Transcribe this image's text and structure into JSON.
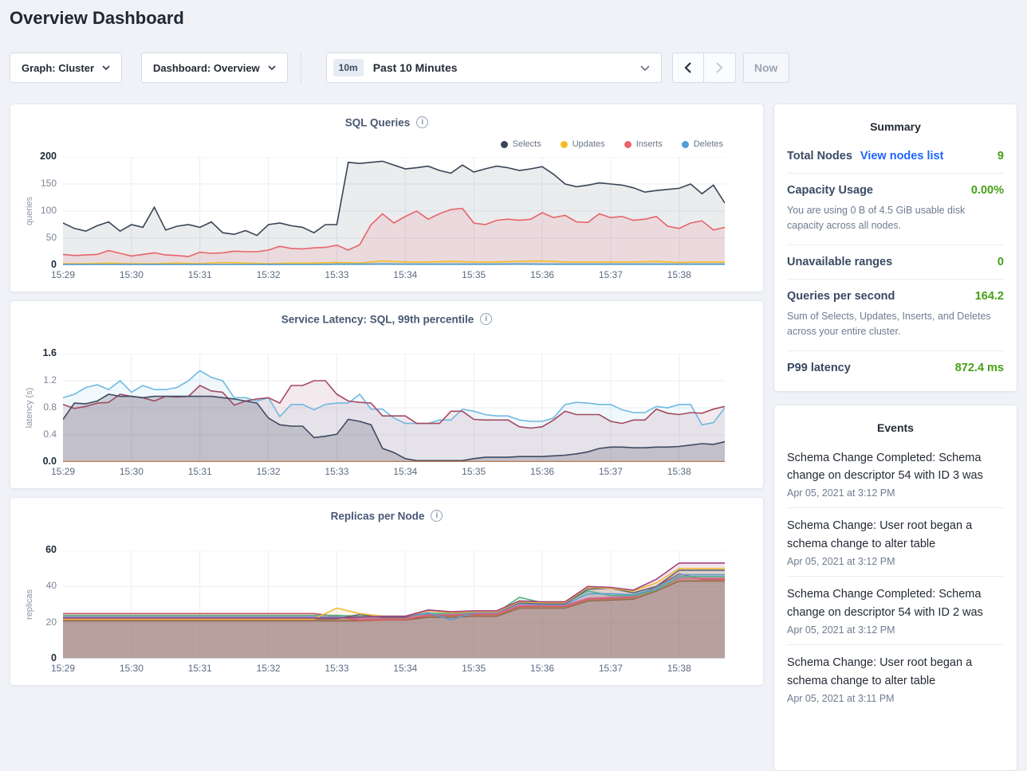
{
  "page": {
    "title": "Overview Dashboard"
  },
  "controls": {
    "graph_dropdown": "Graph: Cluster",
    "dashboard_dropdown": "Dashboard: Overview",
    "time_badge": "10m",
    "time_label": "Past 10 Minutes",
    "now_button": "Now"
  },
  "summary": {
    "title": "Summary",
    "rows": [
      {
        "label": "Total Nodes",
        "link": "View nodes list",
        "value": "9"
      },
      {
        "label": "Capacity Usage",
        "value": "0.00%",
        "desc": "You are using 0 B of 4.5 GiB usable disk capacity across all nodes."
      },
      {
        "label": "Unavailable ranges",
        "value": "0"
      },
      {
        "label": "Queries per second",
        "value": "164.2",
        "desc": "Sum of Selects, Updates, Inserts, and Deletes across your entire cluster."
      },
      {
        "label": "P99 latency",
        "value": "872.4 ms"
      }
    ]
  },
  "events": {
    "title": "Events",
    "items": [
      {
        "message": "Schema Change Completed: Schema change on descriptor 54 with ID 3 was",
        "timestamp": "Apr 05, 2021 at 3:12 PM"
      },
      {
        "message": "Schema Change: User root began a schema change to alter table",
        "timestamp": "Apr 05, 2021 at 3:12 PM"
      },
      {
        "message": "Schema Change Completed: Schema change on descriptor 54 with ID 2 was",
        "timestamp": "Apr 05, 2021 at 3:12 PM"
      },
      {
        "message": "Schema Change: User root began a schema change to alter table",
        "timestamp": "Apr 05, 2021 at 3:11 PM"
      }
    ]
  },
  "colors": {
    "accent_link": "#1f65ff",
    "metric_green": "#45a115",
    "panel_border": "#e3e7ef",
    "page_background": "#f0f2f7"
  },
  "chart_data": [
    {
      "id": "sql",
      "type": "line",
      "title": "SQL Queries",
      "ylabel": "queries",
      "ymax": 200,
      "yticks": [
        {
          "label": "0",
          "value": 0,
          "bold": true
        },
        {
          "label": "50",
          "value": 50
        },
        {
          "label": "100",
          "value": 100
        },
        {
          "label": "150",
          "value": 150
        },
        {
          "label": "200",
          "value": 200,
          "bold": true
        }
      ],
      "xticks": [
        "15:29",
        "15:30",
        "15:31",
        "15:32",
        "15:33",
        "15:34",
        "15:35",
        "15:36",
        "15:37",
        "15:38"
      ],
      "legend": [
        {
          "label": "Selects",
          "color": "#394455"
        },
        {
          "label": "Updates",
          "color": "#f4bd27"
        },
        {
          "label": "Inserts",
          "color": "#e8646a"
        },
        {
          "label": "Deletes",
          "color": "#4da0d8"
        }
      ],
      "series": [
        {
          "name": "selects",
          "color": "#394455",
          "fill_opacity": 0.1,
          "values": [
            78,
            68,
            63,
            73,
            80,
            63,
            75,
            70,
            107,
            65,
            72,
            75,
            70,
            80,
            60,
            57,
            64,
            55,
            75,
            78,
            73,
            70,
            60,
            75,
            75,
            190,
            188,
            190,
            192,
            185,
            178,
            180,
            183,
            175,
            170,
            185,
            172,
            178,
            183,
            180,
            175,
            178,
            182,
            168,
            150,
            145,
            148,
            152,
            150,
            148,
            143,
            135,
            138,
            140,
            142,
            150,
            132,
            148,
            115
          ]
        },
        {
          "name": "inserts",
          "color": "#e8646a",
          "fill_opacity": 0.13,
          "values": [
            20,
            18,
            19,
            20,
            27,
            22,
            17,
            20,
            23,
            19,
            18,
            16,
            24,
            22,
            23,
            26,
            25,
            25,
            28,
            35,
            31,
            30,
            32,
            33,
            37,
            28,
            38,
            75,
            95,
            78,
            90,
            100,
            85,
            95,
            103,
            105,
            78,
            75,
            83,
            85,
            83,
            85,
            97,
            88,
            92,
            80,
            79,
            95,
            88,
            90,
            83,
            85,
            90,
            72,
            68,
            78,
            82,
            65,
            70
          ]
        },
        {
          "name": "updates",
          "color": "#f4bd27",
          "fill_opacity": 0.12,
          "values": [
            3,
            3,
            4,
            3,
            3,
            4,
            3,
            5,
            4,
            3,
            4,
            4,
            5,
            4,
            8,
            6,
            6,
            7,
            6,
            6,
            7,
            8,
            6,
            6,
            6,
            6,
            7,
            5,
            6,
            6
          ]
        },
        {
          "name": "deletes",
          "color": "#4da0d8",
          "fill_opacity": 0.12,
          "values": [
            1.5,
            1.5,
            1.5,
            1.5,
            1.5,
            1.5,
            1.5,
            1.5,
            1.5,
            1.5,
            1.5,
            1.5,
            2,
            2,
            2.5,
            2,
            2,
            2,
            2,
            2,
            2.5,
            2,
            2,
            2,
            2,
            2,
            2,
            2,
            2,
            2
          ]
        }
      ]
    },
    {
      "id": "latency",
      "type": "line",
      "title": "Service Latency: SQL, 99th percentile",
      "ylabel": "latency (s)",
      "ymax": 1.6,
      "yticks": [
        {
          "label": "0.0",
          "value": 0,
          "bold": true
        },
        {
          "label": "0.4",
          "value": 0.4
        },
        {
          "label": "0.8",
          "value": 0.8
        },
        {
          "label": "1.2",
          "value": 1.2
        },
        {
          "label": "1.6",
          "value": 1.6,
          "bold": true
        }
      ],
      "xticks": [
        "15:29",
        "15:30",
        "15:31",
        "15:32",
        "15:33",
        "15:34",
        "15:35",
        "15:36",
        "15:37",
        "15:38"
      ],
      "series": [
        {
          "name": "latency-blue",
          "color": "#6fb9e0",
          "fill_opacity": 0.1,
          "values": [
            0.95,
            1.0,
            1.1,
            1.14,
            1.07,
            1.2,
            1.03,
            1.13,
            1.07,
            1.07,
            1.1,
            1.2,
            1.35,
            1.25,
            1.2,
            0.95,
            0.95,
            0.9,
            0.95,
            0.67,
            0.85,
            0.85,
            0.77,
            0.85,
            0.87,
            0.87,
            1.0,
            0.78,
            0.78,
            0.65,
            0.57,
            0.57,
            0.57,
            0.62,
            0.62,
            0.78,
            0.75,
            0.7,
            0.68,
            0.68,
            0.62,
            0.6,
            0.6,
            0.65,
            0.85,
            0.88,
            0.87,
            0.85,
            0.85,
            0.77,
            0.73,
            0.73,
            0.82,
            0.8,
            0.85,
            0.85,
            0.55,
            0.58,
            0.8
          ]
        },
        {
          "name": "latency-maroon",
          "color": "#a34a62",
          "fill_opacity": 0.12,
          "values": [
            0.85,
            0.79,
            0.82,
            0.87,
            0.88,
            1.0,
            0.97,
            0.95,
            0.9,
            0.97,
            0.96,
            0.97,
            1.13,
            1.05,
            1.03,
            0.84,
            0.9,
            0.93,
            0.95,
            0.87,
            1.13,
            1.13,
            1.2,
            1.2,
            1.0,
            0.9,
            0.88,
            0.87,
            0.68,
            0.68,
            0.68,
            0.57,
            0.57,
            0.57,
            0.75,
            0.75,
            0.63,
            0.62,
            0.62,
            0.62,
            0.52,
            0.5,
            0.52,
            0.62,
            0.75,
            0.7,
            0.7,
            0.7,
            0.6,
            0.57,
            0.62,
            0.62,
            0.78,
            0.72,
            0.7,
            0.73,
            0.72,
            0.78,
            0.82
          ]
        },
        {
          "name": "latency-navy",
          "color": "#3f4a61",
          "fill_opacity": 0.22,
          "values": [
            0.63,
            0.87,
            0.86,
            0.9,
            1.0,
            0.97,
            0.97,
            0.95,
            0.97,
            0.97,
            0.97,
            0.97,
            0.97,
            0.97,
            0.95,
            0.93,
            0.9,
            0.87,
            0.65,
            0.55,
            0.53,
            0.53,
            0.36,
            0.38,
            0.41,
            0.63,
            0.6,
            0.55,
            0.2,
            0.14,
            0.05,
            0.02,
            0.02,
            0.02,
            0.02,
            0.02,
            0.05,
            0.07,
            0.07,
            0.07,
            0.08,
            0.08,
            0.08,
            0.09,
            0.1,
            0.12,
            0.15,
            0.2,
            0.22,
            0.22,
            0.21,
            0.21,
            0.22,
            0.22,
            0.23,
            0.25,
            0.27,
            0.26,
            0.3
          ]
        },
        {
          "name": "latency-orange",
          "color": "#bd7a4e",
          "fill_opacity": 0,
          "values": [
            0.006,
            0.006
          ]
        }
      ]
    },
    {
      "id": "replicas",
      "type": "line",
      "title": "Replicas per Node",
      "ylabel": "replicas",
      "ymax": 60,
      "yticks": [
        {
          "label": "0",
          "value": 0,
          "bold": true
        },
        {
          "label": "20",
          "value": 20
        },
        {
          "label": "40",
          "value": 40
        },
        {
          "label": "60",
          "value": 60,
          "bold": true
        }
      ],
      "xticks": [
        "15:29",
        "15:30",
        "15:31",
        "15:32",
        "15:33",
        "15:34",
        "15:35",
        "15:36",
        "15:37",
        "15:38"
      ],
      "series": [
        {
          "name": "node-brown",
          "color": "#8f5f4b",
          "fill_opacity": 0.13,
          "values": [
            21,
            21,
            21,
            21,
            21,
            21,
            21,
            21,
            21,
            21,
            21,
            21,
            21,
            21,
            21.5,
            21.5,
            23,
            23,
            23.5,
            23.5,
            28,
            28,
            28,
            32,
            32.5,
            33,
            37.5,
            43,
            43,
            43
          ]
        },
        {
          "name": "node-tan",
          "color": "#b08b5e",
          "fill_opacity": 0.13,
          "values": [
            21.5,
            21.5,
            21.5,
            21.5,
            21.5,
            21.5,
            21.5,
            21.5,
            21.5,
            21.5,
            21.5,
            21.5,
            21.5,
            21.5,
            22,
            22,
            23.5,
            23.5,
            24,
            24,
            28.5,
            28.5,
            28.5,
            32.5,
            33,
            33.5,
            38,
            43.5,
            43.5,
            43.5
          ]
        },
        {
          "name": "node-red",
          "color": "#cd5c60",
          "fill_opacity": 0.13,
          "values": [
            25,
            25,
            25,
            25,
            25,
            25,
            25,
            25,
            25,
            25,
            25,
            25,
            23.5,
            21,
            21.5,
            21.5,
            24,
            24,
            24.5,
            24.5,
            29,
            29,
            29,
            33,
            33.5,
            34,
            40,
            47,
            44,
            44
          ]
        },
        {
          "name": "node-pink",
          "color": "#d66a9c",
          "fill_opacity": 0.13,
          "values": [
            23.2,
            23.2,
            23.2,
            23.2,
            23.2,
            23.2,
            23.2,
            23.2,
            23.2,
            23.2,
            23.2,
            23.2,
            23.2,
            22,
            22.5,
            22.5,
            24.5,
            24.5,
            25,
            25,
            29.5,
            29.5,
            29.5,
            33.5,
            34,
            34.5,
            38.5,
            44.5,
            44.5,
            44.5
          ]
        },
        {
          "name": "node-green",
          "color": "#55b187",
          "fill_opacity": 0.13,
          "values": [
            24,
            24,
            24,
            24,
            24,
            24,
            24,
            24,
            24,
            24,
            24,
            24,
            24,
            23.5,
            23.5,
            23.5,
            25,
            25,
            25.5,
            25.5,
            34,
            31,
            31,
            37.5,
            35,
            35,
            38,
            45.5,
            45.5,
            45.5
          ]
        },
        {
          "name": "node-blue",
          "color": "#5b9bd5",
          "fill_opacity": 0.13,
          "values": [
            23,
            23,
            23,
            23,
            23,
            23,
            23,
            23,
            23,
            23,
            23,
            23,
            23,
            23,
            23.2,
            23.2,
            25.5,
            21.5,
            25.5,
            25.5,
            30.5,
            30,
            30,
            36,
            36,
            35.5,
            39,
            46.5,
            46.5,
            46.5
          ]
        },
        {
          "name": "node-grey",
          "color": "#5d6673",
          "fill_opacity": 0.13,
          "values": [
            22.2,
            22.2,
            22.2,
            22.2,
            22.2,
            22.2,
            22.2,
            22.2,
            22.2,
            22.2,
            22.2,
            22.2,
            22.2,
            24.5,
            23,
            23,
            26.8,
            25.5,
            25.8,
            25.8,
            31,
            30.5,
            30.5,
            38.5,
            39,
            36.5,
            40,
            49,
            49,
            49
          ]
        },
        {
          "name": "node-yellow",
          "color": "#f0bb3a",
          "fill_opacity": 0.13,
          "values": [
            22,
            22,
            22,
            22,
            22,
            22,
            22,
            22,
            22,
            22,
            22,
            22,
            28,
            25,
            23.5,
            23.5,
            26.5,
            25.5,
            26,
            26,
            31.5,
            31,
            31,
            39.5,
            39,
            37.5,
            42,
            50,
            50,
            50
          ]
        },
        {
          "name": "node-maroon",
          "color": "#a2427c",
          "fill_opacity": 0.13,
          "values": [
            22.5,
            22.5,
            22.5,
            22.5,
            22.5,
            22.5,
            22.5,
            22.5,
            22.5,
            22.5,
            22.5,
            22.5,
            22.5,
            23,
            23.5,
            23.5,
            27,
            26,
            26.5,
            26.5,
            32,
            31.5,
            31.5,
            40,
            39.5,
            38,
            44,
            53,
            53,
            53
          ]
        }
      ]
    }
  ]
}
